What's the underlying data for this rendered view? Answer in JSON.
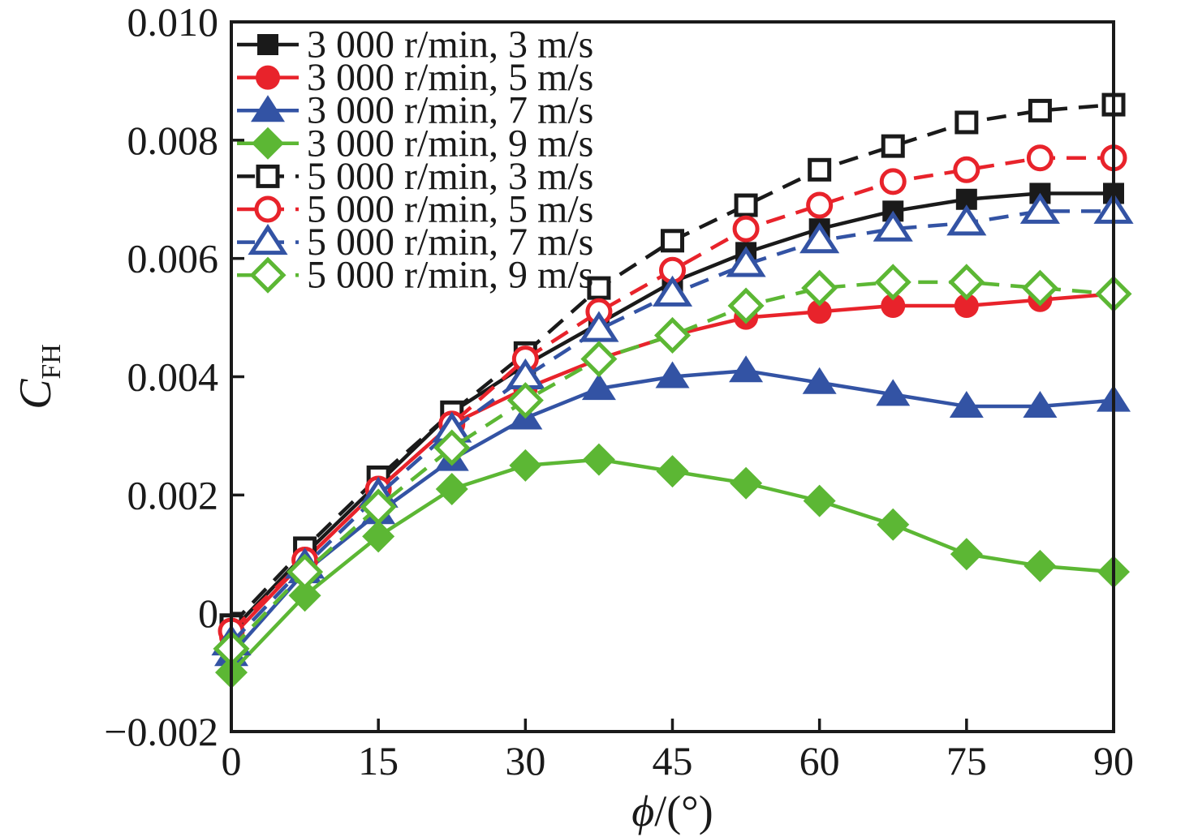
{
  "figure": {
    "background": "#ffffff",
    "frame_color": "#1a1a1a"
  },
  "chart_data": {
    "type": "line",
    "title": "",
    "xlabel_italic": "ϕ",
    "xlabel_rest": "/(°)",
    "ylabel_main": "C",
    "ylabel_sub": "FH",
    "xlim": [
      0,
      90
    ],
    "ylim": [
      -0.002,
      0.01
    ],
    "x_ticks": [
      0,
      15,
      30,
      45,
      60,
      75,
      90
    ],
    "x_tick_labels": [
      "0",
      "15",
      "30",
      "45",
      "60",
      "75",
      "90"
    ],
    "y_ticks": [
      -0.002,
      0,
      0.002,
      0.004,
      0.006,
      0.008,
      0.01
    ],
    "y_tick_labels": [
      "−0.002",
      "0",
      "0.002",
      "0.004",
      "0.006",
      "0.008",
      "0.010"
    ],
    "grid": false,
    "legend_position": "upper-left",
    "x": [
      0,
      7.5,
      15,
      22.5,
      30,
      37.5,
      45,
      52.5,
      60,
      67.5,
      75,
      82.5,
      90
    ],
    "series": [
      {
        "name": "3 000 r/min, 3 m/s",
        "color": "#1a1a1a",
        "line": "solid",
        "marker": "square",
        "marker_fill": "filled",
        "values": [
          -0.0003,
          0.001,
          0.0022,
          0.0034,
          0.0042,
          0.0049,
          0.0056,
          0.0061,
          0.0065,
          0.0068,
          0.007,
          0.0071,
          0.0071
        ]
      },
      {
        "name": "3 000 r/min, 5 m/s",
        "color": "#e8232b",
        "line": "solid",
        "marker": "circle",
        "marker_fill": "filled",
        "values": [
          -0.0004,
          0.0009,
          0.0021,
          0.0032,
          0.0038,
          0.0043,
          0.0047,
          0.005,
          0.0051,
          0.0052,
          0.0052,
          0.0053,
          0.0054
        ]
      },
      {
        "name": "3 000 r/min, 7 m/s",
        "color": "#3353a4",
        "line": "solid",
        "marker": "triangle",
        "marker_fill": "filled",
        "values": [
          -0.0007,
          0.0007,
          0.0017,
          0.0026,
          0.0033,
          0.0038,
          0.004,
          0.0041,
          0.0039,
          0.0037,
          0.0035,
          0.0035,
          0.0036
        ]
      },
      {
        "name": "3 000 r/min, 9 m/s",
        "color": "#5cb734",
        "line": "solid",
        "marker": "diamond",
        "marker_fill": "filled",
        "values": [
          -0.001,
          0.0003,
          0.0013,
          0.0021,
          0.0025,
          0.0026,
          0.0024,
          0.0022,
          0.0019,
          0.0015,
          0.001,
          0.0008,
          0.0007
        ]
      },
      {
        "name": "5 000 r/min, 3 m/s",
        "color": "#1a1a1a",
        "line": "dashed",
        "marker": "square",
        "marker_fill": "open",
        "values": [
          -0.0002,
          0.0011,
          0.0023,
          0.0034,
          0.0044,
          0.0055,
          0.0063,
          0.0069,
          0.0075,
          0.0079,
          0.0083,
          0.0085,
          0.0086
        ]
      },
      {
        "name": "5 000 r/min, 5 m/s",
        "color": "#e8232b",
        "line": "dashed",
        "marker": "circle",
        "marker_fill": "open",
        "values": [
          -0.0003,
          0.0009,
          0.0021,
          0.0032,
          0.0043,
          0.0051,
          0.0058,
          0.0065,
          0.0069,
          0.0073,
          0.0075,
          0.0077,
          0.0077
        ]
      },
      {
        "name": "5 000 r/min, 7 m/s",
        "color": "#3353a4",
        "line": "dashed",
        "marker": "triangle",
        "marker_fill": "open",
        "values": [
          -0.0005,
          0.0008,
          0.002,
          0.0031,
          0.004,
          0.0048,
          0.0054,
          0.0059,
          0.0063,
          0.0065,
          0.0066,
          0.0068,
          0.0068
        ]
      },
      {
        "name": "5 000 r/min, 9 m/s",
        "color": "#5cb734",
        "line": "dashed",
        "marker": "diamond",
        "marker_fill": "open",
        "values": [
          -0.0006,
          0.0007,
          0.0018,
          0.0028,
          0.0036,
          0.0043,
          0.0047,
          0.0052,
          0.0055,
          0.0056,
          0.0056,
          0.0055,
          0.0054
        ]
      }
    ]
  }
}
